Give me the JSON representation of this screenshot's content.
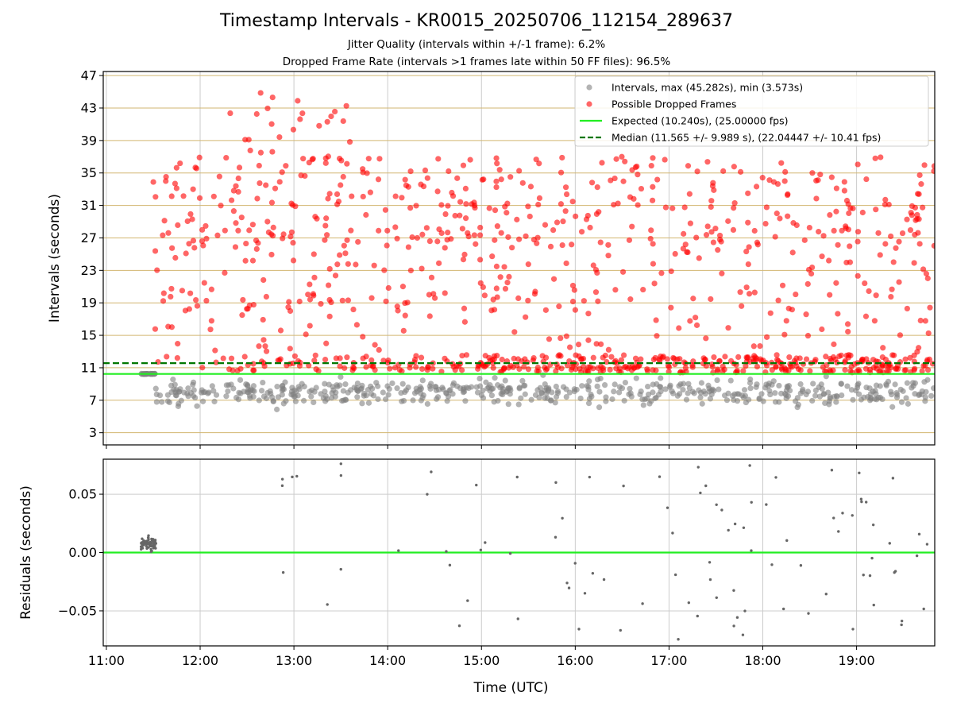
{
  "chart_data": [
    {
      "type": "scatter",
      "title": "Timestamp Intervals - KR0015_20250706_112154_289637",
      "subtitles": [
        "Jitter Quality (intervals within +/-1 frame): 6.2%",
        "Dropped Frame Rate (intervals >1 frames late within 50 FF files): 96.5%"
      ],
      "xlabel": "",
      "ylabel": "Intervals (seconds)",
      "xlim": [
        "10:58",
        "19:50"
      ],
      "ylim": [
        1.5,
        47.5
      ],
      "x_ticks": [
        "11:00",
        "12:00",
        "13:00",
        "14:00",
        "15:00",
        "16:00",
        "17:00",
        "18:00",
        "19:00"
      ],
      "y_ticks": [
        3,
        7,
        11,
        15,
        19,
        23,
        27,
        31,
        35,
        39,
        43,
        47
      ],
      "grid": true,
      "legend_position": "top-right",
      "legend": [
        "Intervals, max (45.282s), min (3.573s)",
        "Possible Dropped Frames",
        "Expected (10.240s), (25.00000 fps)",
        "Median (11.565 +/- 9.989 s), (22.04447 +/- 10.41 fps)"
      ],
      "series": [
        {
          "name": "Intervals, max (45.282s), min (3.573s)",
          "color": "#808080",
          "x_range": [
            "11:22",
            "19:50"
          ],
          "y_range": [
            3.573,
            11.2
          ]
        },
        {
          "name": "Possible Dropped Frames",
          "color": "#ff0000",
          "x_range": [
            "11:30",
            "19:50"
          ],
          "y_range": [
            10.3,
            45.282
          ]
        },
        {
          "name": "Expected (10.240s), (25.00000 fps)",
          "color": "#22ee22",
          "y": 10.24
        },
        {
          "name": "Median (11.565 +/- 9.989 s), (22.04447 +/- 10.41 fps)",
          "color": "#007700",
          "y": 11.565
        }
      ],
      "series_colors": {
        "intervals": "#808080",
        "dropped": "#ff0000",
        "expected": "#22ee22",
        "median": "#007700",
        "hgrid": "#d2b670"
      }
    },
    {
      "type": "scatter",
      "xlabel": "Time (UTC)",
      "ylabel": "Residuals (seconds)",
      "xlim": [
        "10:58",
        "19:50"
      ],
      "ylim": [
        -0.08,
        0.08
      ],
      "x_ticks": [
        "11:00",
        "12:00",
        "13:00",
        "14:00",
        "15:00",
        "16:00",
        "17:00",
        "18:00",
        "19:00"
      ],
      "y_ticks": [
        0.05,
        0.0,
        -0.05
      ],
      "y_tick_labels": [
        "0.05",
        "0.00",
        "−0.05"
      ],
      "zero_line_color": "#22ee22",
      "point_color": "#666666"
    }
  ]
}
